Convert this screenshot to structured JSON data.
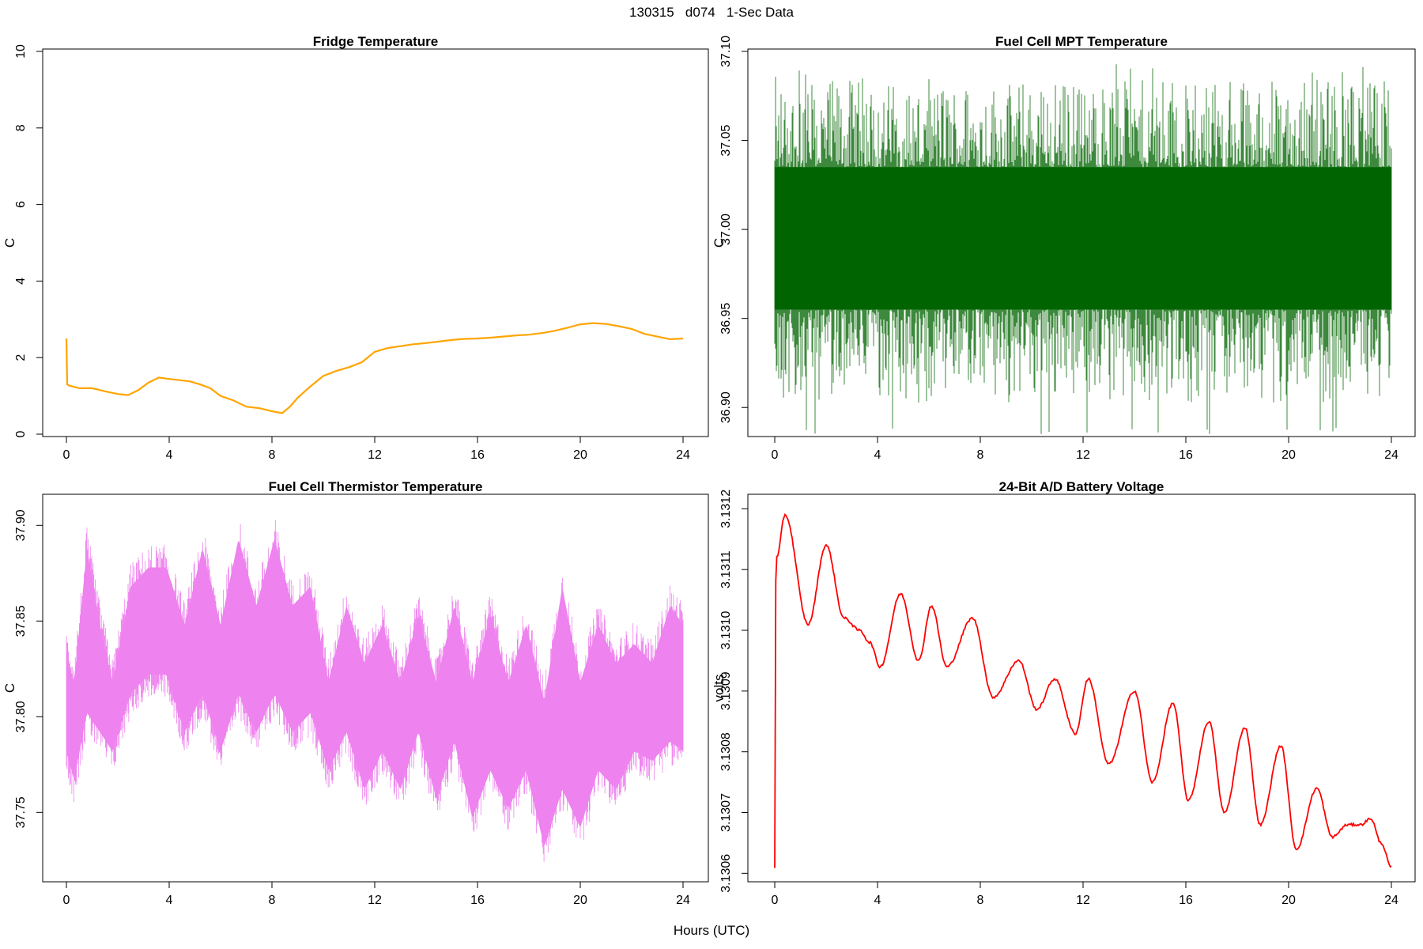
{
  "figure": {
    "title": "130315   d074   1-Sec Data",
    "common_xlabel": "Hours (UTC)"
  },
  "chart_data": [
    {
      "type": "line",
      "title": "Fridge Temperature",
      "ylabel": "C",
      "xlabel": "",
      "color": "#FFA500",
      "xlim": [
        0,
        24
      ],
      "ylim": [
        0,
        10
      ],
      "xticks": [
        0,
        4,
        8,
        12,
        16,
        20,
        24
      ],
      "xtick_labels": [
        "0",
        "4",
        "8",
        "12",
        "16",
        "20",
        "24"
      ],
      "yticks": [
        0,
        2,
        4,
        6,
        8,
        10
      ],
      "ytick_labels": [
        "0",
        "2",
        "4",
        "6",
        "8",
        "10"
      ],
      "series": [
        {
          "name": "Fridge Temperature",
          "x": [
            0,
            0.03,
            0.1,
            0.5,
            1.0,
            1.5,
            2.0,
            2.4,
            2.8,
            3.2,
            3.6,
            3.9,
            4.3,
            4.8,
            5.2,
            5.6,
            6.0,
            6.5,
            7.0,
            7.5,
            8.0,
            8.4,
            8.7,
            9.0,
            9.5,
            10.0,
            10.5,
            11.0,
            11.5,
            12.0,
            12.5,
            13.0,
            13.5,
            14.0,
            14.5,
            15.0,
            15.5,
            16.0,
            16.5,
            17.0,
            17.5,
            18.0,
            18.5,
            19.0,
            19.5,
            20.0,
            20.5,
            21.0,
            21.5,
            22.0,
            22.5,
            23.0,
            23.5,
            24.0
          ],
          "values": [
            2.5,
            1.3,
            1.27,
            1.2,
            1.2,
            1.12,
            1.05,
            1.02,
            1.15,
            1.35,
            1.48,
            1.45,
            1.42,
            1.38,
            1.3,
            1.2,
            1.0,
            0.88,
            0.72,
            0.68,
            0.6,
            0.55,
            0.72,
            0.95,
            1.25,
            1.52,
            1.65,
            1.75,
            1.88,
            2.15,
            2.25,
            2.3,
            2.35,
            2.38,
            2.42,
            2.46,
            2.49,
            2.5,
            2.52,
            2.55,
            2.58,
            2.6,
            2.64,
            2.7,
            2.78,
            2.87,
            2.9,
            2.88,
            2.82,
            2.75,
            2.62,
            2.55,
            2.48,
            2.5
          ]
        }
      ]
    },
    {
      "type": "line",
      "title": "Fuel Cell MPT Temperature",
      "ylabel": "C",
      "xlabel": "",
      "color": "#006400",
      "xlim": [
        0,
        24
      ],
      "ylim": [
        36.885,
        37.1
      ],
      "xticks": [
        0,
        4,
        8,
        12,
        16,
        20,
        24
      ],
      "xtick_labels": [
        "0",
        "4",
        "8",
        "12",
        "16",
        "20",
        "24"
      ],
      "yticks": [
        36.9,
        36.95,
        37.0,
        37.05,
        37.1
      ],
      "ytick_labels": [
        "36.90",
        "36.95",
        "37.00",
        "37.05",
        "37.10"
      ],
      "series": [
        {
          "name": "Fuel Cell MPT Temperature",
          "x": [
            0,
            4,
            8,
            12,
            16,
            20,
            24
          ],
          "values": [
            36.99,
            36.99,
            36.99,
            36.99,
            36.99,
            36.99,
            36.99
          ],
          "dense_band_range": [
            36.955,
            37.035
          ],
          "extreme_range": [
            36.885,
            37.093
          ]
        }
      ]
    },
    {
      "type": "line",
      "title": "Fuel Cell Thermistor Temperature",
      "ylabel": "C",
      "xlabel": "",
      "color": "#EE82EE",
      "xlim": [
        0,
        24
      ],
      "ylim": [
        37.715,
        37.915
      ],
      "xticks": [
        0,
        4,
        8,
        12,
        16,
        20,
        24
      ],
      "xtick_labels": [
        "0",
        "4",
        "8",
        "12",
        "16",
        "20",
        "24"
      ],
      "yticks": [
        37.75,
        37.8,
        37.85,
        37.9
      ],
      "ytick_labels": [
        "37.75",
        "37.80",
        "37.85",
        "37.90"
      ],
      "series": [
        {
          "name": "Fuel Cell Thermistor Temperature",
          "x": [
            0,
            0.3,
            0.8,
            1.3,
            1.8,
            2.5,
            3.2,
            3.9,
            4.6,
            5.3,
            6.0,
            6.7,
            7.4,
            8.1,
            8.8,
            9.5,
            10.2,
            10.9,
            11.6,
            12.3,
            13.0,
            13.7,
            14.4,
            15.1,
            15.8,
            16.5,
            17.2,
            17.9,
            18.6,
            19.3,
            20.0,
            20.7,
            21.4,
            22.1,
            22.8,
            23.5,
            24.0
          ],
          "values": [
            37.81,
            37.8,
            37.84,
            37.83,
            37.8,
            37.84,
            37.84,
            37.84,
            37.81,
            37.84,
            37.81,
            37.84,
            37.82,
            37.84,
            37.82,
            37.83,
            37.8,
            37.83,
            37.79,
            37.82,
            37.79,
            37.83,
            37.79,
            37.83,
            37.79,
            37.83,
            37.79,
            37.82,
            37.77,
            37.82,
            37.78,
            37.82,
            37.79,
            37.81,
            37.8,
            37.82,
            37.81
          ],
          "envelope_high": [
            37.845,
            37.83,
            37.9,
            37.86,
            37.83,
            37.88,
            37.89,
            37.89,
            37.86,
            37.9,
            37.86,
            37.905,
            37.87,
            37.905,
            37.87,
            37.88,
            37.83,
            37.87,
            37.84,
            37.86,
            37.83,
            37.865,
            37.83,
            37.87,
            37.83,
            37.865,
            37.83,
            37.86,
            37.82,
            37.88,
            37.83,
            37.86,
            37.84,
            37.85,
            37.84,
            37.87,
            37.86
          ],
          "envelope_low": [
            37.77,
            37.755,
            37.79,
            37.78,
            37.77,
            37.8,
            37.81,
            37.81,
            37.78,
            37.8,
            37.77,
            37.8,
            37.78,
            37.8,
            37.78,
            37.79,
            37.76,
            37.78,
            37.75,
            37.77,
            37.75,
            37.78,
            37.745,
            37.775,
            37.735,
            37.76,
            37.74,
            37.76,
            37.72,
            37.75,
            37.73,
            37.76,
            37.75,
            37.77,
            37.765,
            37.775,
            37.77
          ]
        }
      ]
    },
    {
      "type": "line",
      "title": "24-Bit A/D Battery Voltage",
      "ylabel": "volts",
      "xlabel": "",
      "color": "#FF0000",
      "xlim": [
        0,
        24
      ],
      "ylim": [
        3.13059,
        3.13122
      ],
      "xticks": [
        0,
        4,
        8,
        12,
        16,
        20,
        24
      ],
      "xtick_labels": [
        "0",
        "4",
        "8",
        "12",
        "16",
        "20",
        "24"
      ],
      "yticks": [
        3.1306,
        3.1307,
        3.1308,
        3.1309,
        3.131,
        3.1311,
        3.1312
      ],
      "ytick_labels": [
        "3.1306",
        "3.1307",
        "3.1308",
        "3.1309",
        "3.1310",
        "3.1311",
        "3.1312"
      ],
      "series": [
        {
          "name": "24-Bit A/D Battery Voltage",
          "x": [
            0,
            0.02,
            0.08,
            0.4,
            1.3,
            2.0,
            2.7,
            3.3,
            3.7,
            4.1,
            4.9,
            5.6,
            6.1,
            6.7,
            7.7,
            8.5,
            9.5,
            10.2,
            10.9,
            11.7,
            12.2,
            13.0,
            14.0,
            14.7,
            15.5,
            16.1,
            16.9,
            17.5,
            18.3,
            18.9,
            19.7,
            20.3,
            21.1,
            21.7,
            22.3,
            22.8,
            23.2,
            23.6,
            24.0
          ],
          "values": [
            3.13061,
            3.13107,
            3.13112,
            3.13119,
            3.13101,
            3.13114,
            3.13102,
            3.131,
            3.13098,
            3.13094,
            3.13106,
            3.13095,
            3.13104,
            3.13094,
            3.13102,
            3.13089,
            3.13095,
            3.13087,
            3.13092,
            3.13083,
            3.13092,
            3.13078,
            3.1309,
            3.13075,
            3.13088,
            3.13072,
            3.13085,
            3.1307,
            3.13084,
            3.13068,
            3.13081,
            3.13064,
            3.13074,
            3.13066,
            3.13068,
            3.13068,
            3.13069,
            3.13065,
            3.13061
          ]
        }
      ]
    }
  ]
}
